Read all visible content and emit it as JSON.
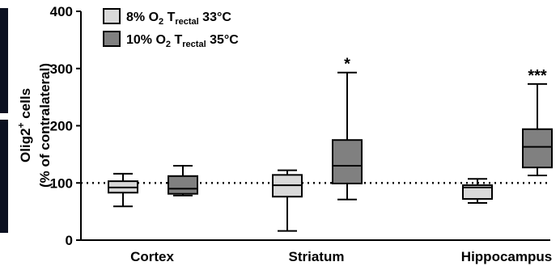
{
  "chart_data": {
    "type": "box",
    "ylabel": [
      [
        "Olig2",
        "+",
        " cells"
      ],
      [
        "(% of contralateral)"
      ]
    ],
    "categories": [
      "Cortex",
      "Striatum",
      "Hippocampus"
    ],
    "series": [
      {
        "name": [
          "8% O",
          "2",
          " T",
          "rectal",
          " 33°C"
        ],
        "color": "#d9d9d9",
        "values": [
          {
            "min": 59,
            "q1": 83,
            "median": 92,
            "q3": 103,
            "max": 116
          },
          {
            "min": 16,
            "q1": 76,
            "median": 96,
            "q3": 114,
            "max": 122
          },
          {
            "min": 65,
            "q1": 72,
            "median": 92,
            "q3": 96,
            "max": 107
          }
        ]
      },
      {
        "name": [
          "10% O",
          "2",
          " T",
          "rectal",
          " 35°C"
        ],
        "color": "#808080",
        "values": [
          {
            "min": 78,
            "q1": 81,
            "median": 90,
            "q3": 112,
            "max": 130
          },
          {
            "min": 71,
            "q1": 99,
            "median": 130,
            "q3": 175,
            "max": 293
          },
          {
            "min": 113,
            "q1": 127,
            "median": 163,
            "q3": 194,
            "max": 273
          }
        ]
      }
    ],
    "annotations": [
      null,
      "*",
      "***"
    ],
    "reference_line": 100,
    "ylim": [
      0,
      400
    ],
    "yticks": [
      0,
      100,
      200,
      300,
      400
    ]
  }
}
